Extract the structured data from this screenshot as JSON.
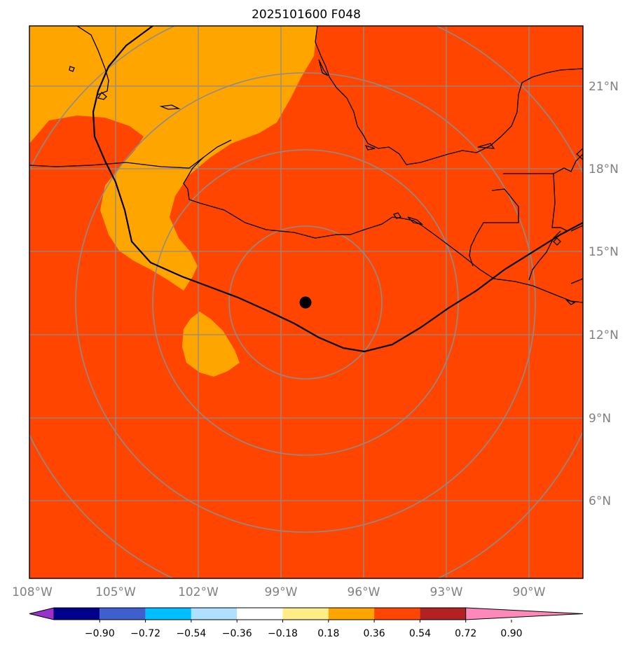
{
  "map": {
    "title": "2025101600 F048",
    "lon_labels": [
      "108°W",
      "105°W",
      "102°W",
      "99°W",
      "96°W",
      "93°W",
      "90°W"
    ],
    "lat_labels": [
      "21°N",
      "18°N",
      "15°N",
      "12°N",
      "9°N",
      "6°N"
    ],
    "storm_center": {
      "lon": -98.1,
      "lat": 13.2
    },
    "background_color": "#ff4500",
    "region_color": "#ffa500"
  },
  "colorbar": {
    "ticks": [
      "−0.90",
      "−0.72",
      "−0.54",
      "−0.36",
      "−0.18",
      "0.18",
      "0.36",
      "0.54",
      "0.72",
      "0.90"
    ],
    "colors": [
      "#9932cc",
      "#00008b",
      "#3f5fcf",
      "#00bfff",
      "#b0e0ff",
      "#ffffff",
      "#ffee88",
      "#ffa500",
      "#ff4500",
      "#b22222",
      "#ff88bb"
    ]
  }
}
